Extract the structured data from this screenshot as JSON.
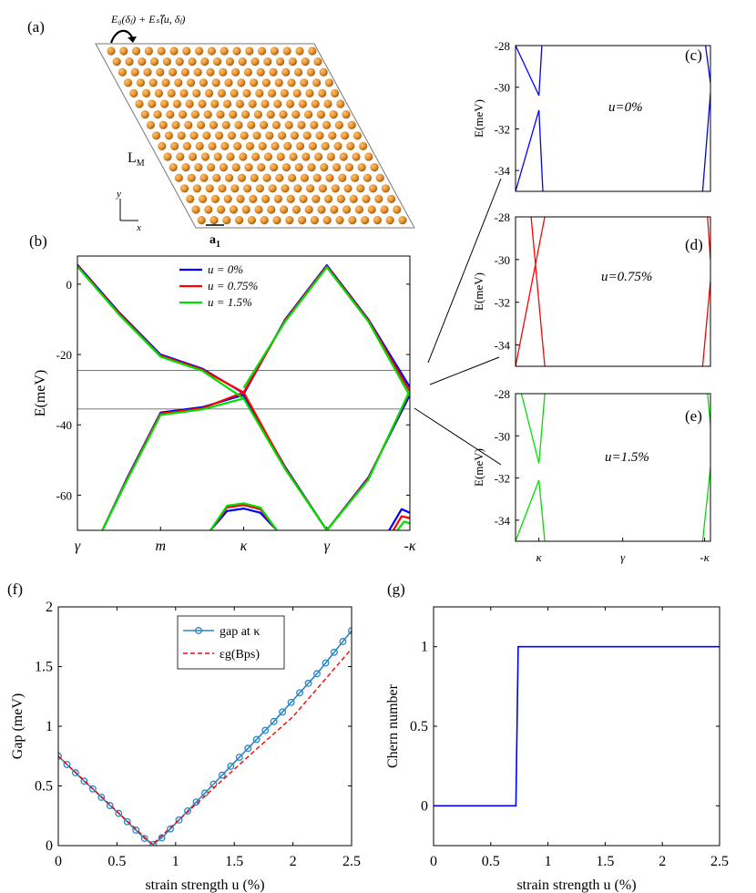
{
  "panels": {
    "a": {
      "label": "(a)",
      "formula": "E₀(δⱼ) + Eₛ(⃖u, δⱼ)",
      "lm_label": "L",
      "lm_sub": "M",
      "a1_label": "a",
      "a1_sub": "1",
      "axis_y": "y",
      "axis_x": "x",
      "atom_color": "#e8922a"
    },
    "b": {
      "label": "(b)"
    },
    "c": {
      "label": "(c)",
      "annotation": "u=0%"
    },
    "d": {
      "label": "(d)",
      "annotation": "u=0.75%"
    },
    "e": {
      "label": "(e)",
      "annotation": "u=1.5%"
    },
    "f": {
      "label": "(f)"
    },
    "g": {
      "label": "(g)"
    }
  },
  "chart_data": [
    {
      "id": "b",
      "type": "line",
      "title": "",
      "ylabel": "E(meV)",
      "ylim": [
        -70,
        8
      ],
      "yticks": [
        0,
        -20,
        -40,
        -60
      ],
      "xlim": [
        0,
        4
      ],
      "xtick_positions": [
        0,
        1,
        2,
        3,
        4
      ],
      "xtick_labels": [
        "γ",
        "m",
        "κ",
        "γ",
        "-κ"
      ],
      "box_ylim": [
        -35.5,
        -24.5
      ],
      "legend": {
        "placement": "top-center",
        "entries": [
          "u = 0%",
          "u = 0.75%",
          "u = 1.5%"
        ]
      },
      "series": [
        {
          "name": "u = 0%",
          "color": "#0000ff",
          "bands": [
            {
              "x": [
                0,
                0.5,
                1,
                1.5,
                2
              ],
              "y": [
                5.5,
                -8,
                -20,
                -24,
                -31
              ]
            },
            {
              "x": [
                2,
                2.5,
                3,
                3.5,
                4
              ],
              "y": [
                -31.2,
                -10,
                5.4,
                -10,
                -29.3
              ]
            },
            {
              "x": [
                0.3,
                0.6,
                1,
                1.5,
                2,
                2.5,
                3,
                3.5,
                4
              ],
              "y": [
                -70,
                -55,
                -36.5,
                -35,
                -31.5,
                -52,
                -70,
                -55,
                -31.5
              ]
            },
            {
              "x": [
                1.6,
                1.8,
                2,
                2.2,
                2.4
              ],
              "y": [
                -70,
                -64.5,
                -63.8,
                -65,
                -70
              ]
            },
            {
              "x": [
                3.75,
                3.9,
                4
              ],
              "y": [
                -70,
                -64,
                -65
              ]
            }
          ]
        },
        {
          "name": "u = 0.75%",
          "color": "#ff0000",
          "bands": [
            {
              "x": [
                0,
                0.5,
                1,
                1.5,
                2
              ],
              "y": [
                5.2,
                -8.3,
                -20.3,
                -24.3,
                -30.8
              ]
            },
            {
              "x": [
                2,
                2.5,
                3,
                3.5,
                4
              ],
              "y": [
                -30.8,
                -10.3,
                5.1,
                -10.3,
                -30.5
              ]
            },
            {
              "x": [
                0.3,
                0.6,
                1,
                1.5,
                2,
                2.5,
                3,
                3.5,
                4
              ],
              "y": [
                -70,
                -55.3,
                -36.8,
                -35.3,
                -30.8,
                -52.3,
                -70,
                -55.3,
                -30.5
              ]
            },
            {
              "x": [
                1.6,
                1.8,
                2,
                2.2,
                2.4
              ],
              "y": [
                -70,
                -63.5,
                -62.8,
                -64,
                -70
              ]
            },
            {
              "x": [
                3.8,
                3.9,
                4
              ],
              "y": [
                -70,
                -66,
                -66.5
              ]
            }
          ]
        },
        {
          "name": "u = 1.5%",
          "color": "#00e000",
          "bands": [
            {
              "x": [
                0,
                0.5,
                1,
                1.5,
                2
              ],
              "y": [
                5.0,
                -8.6,
                -20.6,
                -24.6,
                -32.5
              ]
            },
            {
              "x": [
                2,
                2.5,
                3,
                3.5,
                4
              ],
              "y": [
                -29.5,
                -10.6,
                4.8,
                -10.6,
                -31.8
              ]
            },
            {
              "x": [
                0.3,
                0.6,
                1,
                1.5,
                2,
                2.5,
                3,
                3.5,
                4
              ],
              "y": [
                -70,
                -55.6,
                -37.2,
                -35.6,
                -32.5,
                -52.6,
                -70,
                -55.6,
                -30.2
              ]
            },
            {
              "x": [
                1.6,
                1.8,
                2,
                2.2,
                2.4
              ],
              "y": [
                -70,
                -63,
                -62.3,
                -63.5,
                -70
              ]
            },
            {
              "x": [
                3.85,
                3.93,
                4
              ],
              "y": [
                -70,
                -67.5,
                -68
              ]
            }
          ]
        }
      ]
    },
    {
      "id": "c",
      "type": "line",
      "ylabel": "E(meV)",
      "ylim": [
        -35,
        -28
      ],
      "yticks": [
        -28,
        -30,
        -32,
        -34
      ],
      "xlim": [
        0,
        1
      ],
      "series": [
        {
          "name": "u=0%",
          "color": "#0000ff",
          "bands": [
            {
              "x": [
                0.0,
                0.12
              ],
              "y": [
                -35,
                -31.1
              ]
            },
            {
              "x": [
                0.12,
                0.14
              ],
              "y": [
                -31.1,
                -35
              ]
            },
            {
              "x": [
                0.12,
                0.135
              ],
              "y": [
                -30.4,
                -28
              ]
            },
            {
              "x": [
                0.0,
                0.12
              ],
              "y": [
                -28,
                -30.4
              ]
            },
            {
              "x": [
                0.96,
                1.0
              ],
              "y": [
                -35,
                -30.3
              ]
            },
            {
              "x": [
                0.975,
                1.0
              ],
              "y": [
                -28,
                -29.8
              ]
            }
          ]
        }
      ]
    },
    {
      "id": "d",
      "type": "line",
      "ylabel": "E(meV)",
      "ylim": [
        -35,
        -28
      ],
      "yticks": [
        -28,
        -30,
        -32,
        -34
      ],
      "xlim": [
        0,
        1
      ],
      "series": [
        {
          "name": "u=0.75%",
          "color": "#ff0000",
          "bands": [
            {
              "x": [
                0.0,
                0.15
              ],
              "y": [
                -35,
                -28
              ]
            },
            {
              "x": [
                0.08,
                0.15
              ],
              "y": [
                -28,
                -35
              ]
            },
            {
              "x": [
                0.96,
                1.0
              ],
              "y": [
                -35,
                -31
              ]
            },
            {
              "x": [
                0.985,
                1.0
              ],
              "y": [
                -28,
                -30
              ]
            }
          ]
        }
      ]
    },
    {
      "id": "e",
      "type": "line",
      "ylabel": "E(meV)",
      "ylim": [
        -35,
        -28
      ],
      "yticks": [
        -28,
        -30,
        -32,
        -34
      ],
      "xlim": [
        0,
        1
      ],
      "xtick_positions": [
        0.12,
        0.55,
        0.97
      ],
      "xtick_labels": [
        "κ",
        "γ",
        "-κ"
      ],
      "series": [
        {
          "name": "u=1.5%",
          "color": "#00e000",
          "bands": [
            {
              "x": [
                0.0,
                0.12
              ],
              "y": [
                -35,
                -32.1
              ]
            },
            {
              "x": [
                0.12,
                0.15
              ],
              "y": [
                -32.1,
                -35
              ]
            },
            {
              "x": [
                0.12,
                0.15
              ],
              "y": [
                -31.3,
                -28
              ]
            },
            {
              "x": [
                0.03,
                0.12
              ],
              "y": [
                -28,
                -31.3
              ]
            },
            {
              "x": [
                0.96,
                1.0
              ],
              "y": [
                -35,
                -31.5
              ]
            },
            {
              "x": [
                0.985,
                1.0
              ],
              "y": [
                -28,
                -29.5
              ]
            }
          ]
        }
      ]
    },
    {
      "id": "f",
      "type": "line",
      "xlabel": "strain strength u (%)",
      "ylabel": "Gap (meV)",
      "xlim": [
        0,
        2.5
      ],
      "ylim": [
        0,
        2
      ],
      "xticks": [
        0,
        0.5,
        1,
        1.5,
        2,
        2.5
      ],
      "xtick_labels": [
        "0",
        "0.5",
        "1",
        "1.5",
        "2",
        "2.5"
      ],
      "yticks": [
        0,
        0.5,
        1,
        1.5,
        2
      ],
      "ytick_labels": [
        "0",
        "0.5",
        "1",
        "1.5",
        "2"
      ],
      "legend": {
        "placement": "top-right",
        "entries": [
          "gap at  κ",
          "εg(Bps)"
        ]
      },
      "series": [
        {
          "name": "gap at  κ",
          "color": "#2e86c1",
          "marker": "circle",
          "x": [
            0,
            0.0735,
            0.147,
            0.2205,
            0.294,
            0.3675,
            0.441,
            0.5145,
            0.588,
            0.6615,
            0.735,
            0.8085,
            0.882,
            0.9555,
            1.029,
            1.1025,
            1.176,
            1.2495,
            1.323,
            1.3965,
            1.47,
            1.5435,
            1.617,
            1.6905,
            1.764,
            1.8375,
            1.911,
            1.9845,
            2.058,
            2.1315,
            2.205,
            2.2785,
            2.352,
            2.4255,
            2.5
          ],
          "y": [
            0.75,
            0.68,
            0.61,
            0.54,
            0.475,
            0.405,
            0.335,
            0.27,
            0.2,
            0.13,
            0.06,
            0.01,
            0.065,
            0.14,
            0.215,
            0.29,
            0.365,
            0.44,
            0.515,
            0.59,
            0.665,
            0.74,
            0.815,
            0.89,
            0.965,
            1.04,
            1.12,
            1.2,
            1.28,
            1.36,
            1.44,
            1.53,
            1.62,
            1.71,
            1.8
          ]
        },
        {
          "name": "εg(Bps)",
          "color": "#ff0000",
          "dashed": true,
          "x": [
            0,
            0.4,
            0.8,
            1.2,
            1.6,
            2.0,
            2.5
          ],
          "y": [
            0.75,
            0.38,
            0.01,
            0.37,
            0.73,
            1.08,
            1.65
          ]
        }
      ]
    },
    {
      "id": "g",
      "type": "line",
      "xlabel": "strain strength u (%)",
      "ylabel": "Chern number",
      "xlim": [
        0,
        2.5
      ],
      "ylim": [
        -0.25,
        1.25
      ],
      "xticks": [
        0,
        0.5,
        1,
        1.5,
        2,
        2.5
      ],
      "xtick_labels": [
        "0",
        "0.5",
        "1",
        "1.5",
        "2",
        "2.5"
      ],
      "yticks": [
        0,
        0.5,
        1
      ],
      "ytick_labels": [
        "0",
        "0.5",
        "1"
      ],
      "series": [
        {
          "name": "Chern",
          "color": "#0000ff",
          "x": [
            0,
            0.72,
            0.74,
            2.5
          ],
          "y": [
            0,
            0,
            1,
            1
          ]
        }
      ]
    }
  ]
}
